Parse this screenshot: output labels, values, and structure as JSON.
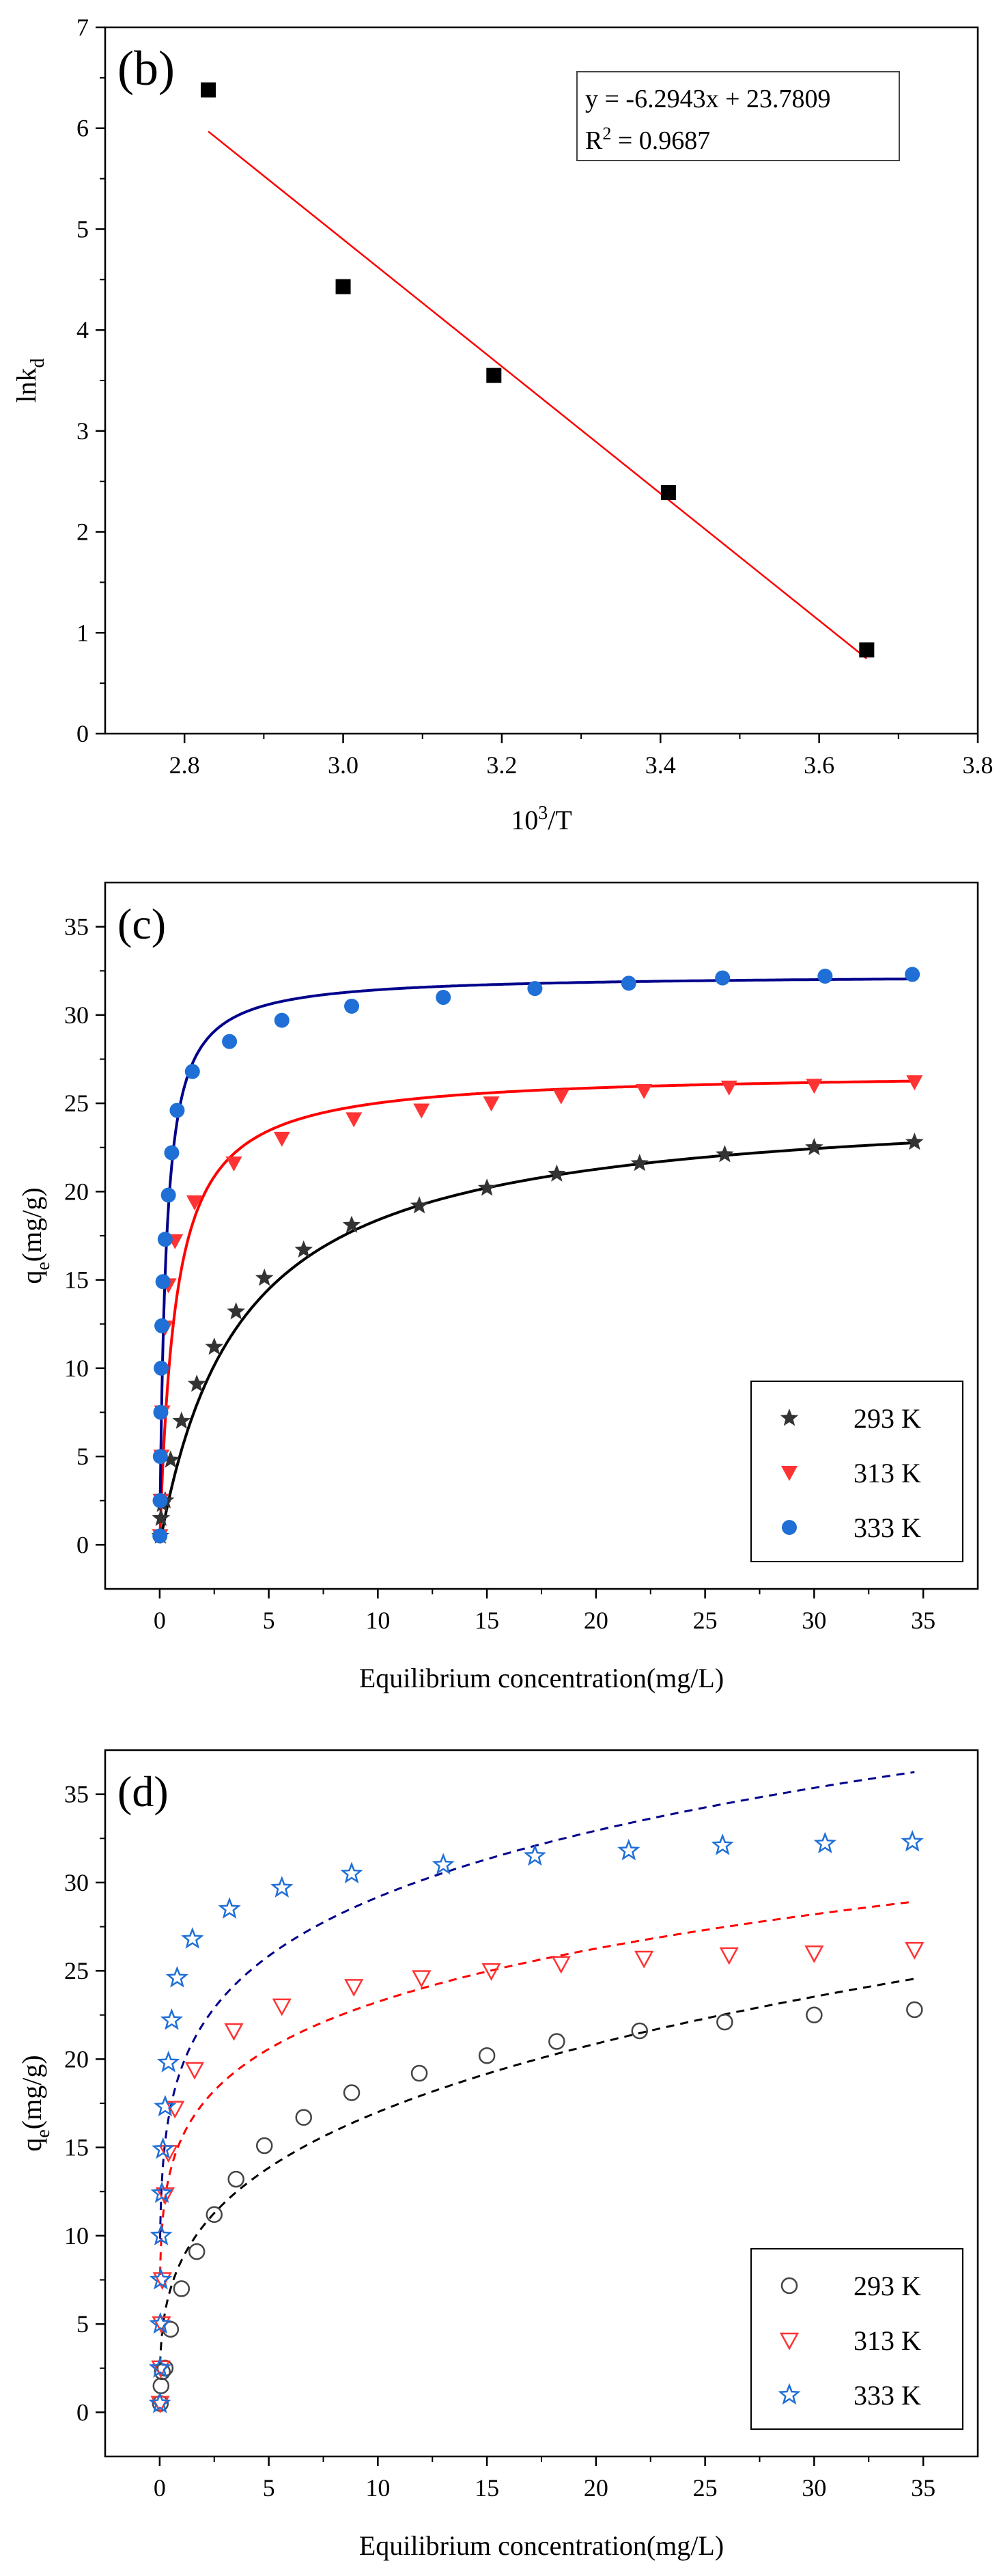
{
  "chart_data": [
    {
      "type": "scatter",
      "panel_label": "(b)",
      "xlabel": "10",
      "xlabel_sup": "3",
      "xlabel_tail": "/T",
      "ylabel": "lnk",
      "ylabel_sub": "d",
      "xlim": [
        2.7,
        3.8
      ],
      "ylim": [
        0,
        7
      ],
      "x_ticks": [
        2.8,
        3.0,
        3.2,
        3.4,
        3.6,
        3.8
      ],
      "x_tick_labels": [
        "2.8",
        "3.0",
        "3.2",
        "3.4",
        "3.6",
        "3.8"
      ],
      "y_ticks": [
        0,
        1,
        2,
        3,
        4,
        5,
        6,
        7
      ],
      "y_tick_labels": [
        "0",
        "1",
        "2",
        "3",
        "4",
        "5",
        "6",
        "7"
      ],
      "series": [
        {
          "name": "lnkd",
          "marker": "square",
          "color": "#000000",
          "x": [
            2.83,
            3.0,
            3.19,
            3.41,
            3.66
          ],
          "y": [
            6.38,
            4.43,
            3.55,
            2.39,
            0.83
          ]
        }
      ],
      "fit_line": {
        "color": "#ff0000",
        "x_range": [
          2.83,
          3.66
        ],
        "slope": -6.2943,
        "intercept": 23.7809
      },
      "annotation": {
        "equation": "y = -6.2943x + 23.7809",
        "r2_prefix": "R",
        "r2_sup": "2",
        "r2_value": " = 0.9687"
      }
    },
    {
      "type": "scatter",
      "panel_label": "(c)",
      "xlabel": "Equilibrium concentration(mg/L)",
      "ylabel": "q",
      "ylabel_sub": "e",
      "ylabel_tail": "(mg/g)",
      "xlim": [
        -2.5,
        37.5
      ],
      "ylim": [
        -2.5,
        37.5
      ],
      "x_ticks": [
        0,
        5,
        10,
        15,
        20,
        25,
        30,
        35
      ],
      "x_tick_labels": [
        "0",
        "5",
        "10",
        "15",
        "20",
        "25",
        "30",
        "35"
      ],
      "y_ticks": [
        0,
        5,
        10,
        15,
        20,
        25,
        30,
        35
      ],
      "y_tick_labels": [
        "0",
        "5",
        "10",
        "15",
        "20",
        "25",
        "30",
        "35"
      ],
      "legend_position": "bottom-right",
      "series": [
        {
          "name": "293 K",
          "marker": "star",
          "color": "#333333",
          "x": [
            0.03,
            0.06,
            0.12,
            0.25,
            0.5,
            1.0,
            1.7,
            2.5,
            3.5,
            4.8,
            6.6,
            8.8,
            11.9,
            15.0,
            18.2,
            22.0,
            25.9,
            30.0,
            34.6
          ],
          "y": [
            0.5,
            1.5,
            2.3,
            2.5,
            4.8,
            7.0,
            9.1,
            11.2,
            13.2,
            15.1,
            16.7,
            18.1,
            19.2,
            20.2,
            21.0,
            21.6,
            22.1,
            22.5,
            22.8
          ]
        },
        {
          "name": "313 K",
          "marker": "triangle-down",
          "color": "#ff3333",
          "x": [
            0.02,
            0.05,
            0.08,
            0.12,
            0.25,
            0.4,
            0.7,
            1.6,
            3.4,
            5.6,
            8.9,
            12.0,
            15.2,
            18.4,
            22.2,
            26.1,
            30.0,
            34.6
          ],
          "y": [
            0.5,
            2.5,
            5.0,
            7.5,
            12.3,
            14.7,
            17.2,
            19.4,
            21.6,
            23.0,
            24.1,
            24.6,
            25.0,
            25.4,
            25.7,
            25.9,
            26.0,
            26.2
          ]
        },
        {
          "name": "333 K",
          "marker": "circle",
          "color": "#1f6fd6",
          "x": [
            0.01,
            0.02,
            0.03,
            0.05,
            0.07,
            0.1,
            0.15,
            0.25,
            0.4,
            0.55,
            0.8,
            1.5,
            3.2,
            5.6,
            8.8,
            13.0,
            17.2,
            21.5,
            25.8,
            30.5,
            34.5
          ],
          "y": [
            0.5,
            2.5,
            5.0,
            7.5,
            10.0,
            12.4,
            14.9,
            17.3,
            19.8,
            22.2,
            24.6,
            26.8,
            28.5,
            29.7,
            30.5,
            31.0,
            31.5,
            31.8,
            32.1,
            32.2,
            32.3
          ]
        }
      ],
      "fits": [
        {
          "name": "293 K",
          "model": "langmuir",
          "qm": 25.2,
          "kl": 0.27,
          "color": "#000000",
          "style": "solid"
        },
        {
          "name": "313 K",
          "model": "langmuir",
          "qm": 26.8,
          "kl": 1.4,
          "color": "#ff0000",
          "style": "solid"
        },
        {
          "name": "333 K",
          "model": "langmuir",
          "qm": 32.3,
          "kl": 3.6,
          "color": "#00008b",
          "style": "solid"
        }
      ]
    },
    {
      "type": "scatter",
      "panel_label": "(d)",
      "xlabel": "Equilibrium concentration(mg/L)",
      "ylabel": "q",
      "ylabel_sub": "e",
      "ylabel_tail": "(mg/g)",
      "xlim": [
        -2.5,
        37.5
      ],
      "ylim": [
        -2.5,
        37.5
      ],
      "x_ticks": [
        0,
        5,
        10,
        15,
        20,
        25,
        30,
        35
      ],
      "x_tick_labels": [
        "0",
        "5",
        "10",
        "15",
        "20",
        "25",
        "30",
        "35"
      ],
      "y_ticks": [
        0,
        5,
        10,
        15,
        20,
        25,
        30,
        35
      ],
      "y_tick_labels": [
        "0",
        "5",
        "10",
        "15",
        "20",
        "25",
        "30",
        "35"
      ],
      "legend_position": "bottom-right",
      "series": [
        {
          "name": "293 K",
          "marker": "open-circle",
          "color": "#444444",
          "x": [
            0.03,
            0.06,
            0.12,
            0.25,
            0.5,
            1.0,
            1.7,
            2.5,
            3.5,
            4.8,
            6.6,
            8.8,
            11.9,
            15.0,
            18.2,
            22.0,
            25.9,
            30.0,
            34.6
          ],
          "y": [
            0.5,
            1.5,
            2.3,
            2.5,
            4.7,
            7.0,
            9.1,
            11.2,
            13.2,
            15.1,
            16.7,
            18.1,
            19.2,
            20.2,
            21.0,
            21.6,
            22.1,
            22.5,
            22.8
          ]
        },
        {
          "name": "313 K",
          "marker": "open-triangle-down",
          "color": "#ff3333",
          "x": [
            0.02,
            0.05,
            0.08,
            0.12,
            0.25,
            0.4,
            0.7,
            1.6,
            3.4,
            5.6,
            8.9,
            12.0,
            15.2,
            18.4,
            22.2,
            26.1,
            30.0,
            34.6
          ],
          "y": [
            0.5,
            2.5,
            5.0,
            7.5,
            12.3,
            14.7,
            17.2,
            19.4,
            21.6,
            23.0,
            24.1,
            24.6,
            25.0,
            25.4,
            25.7,
            25.9,
            26.0,
            26.2
          ]
        },
        {
          "name": "333 K",
          "marker": "open-star",
          "color": "#1f6fd6",
          "x": [
            0.01,
            0.02,
            0.03,
            0.05,
            0.07,
            0.1,
            0.15,
            0.25,
            0.4,
            0.55,
            0.8,
            1.5,
            3.2,
            5.6,
            8.8,
            13.0,
            17.2,
            21.5,
            25.8,
            30.5,
            34.5
          ],
          "y": [
            0.5,
            2.5,
            5.0,
            7.5,
            10.0,
            12.4,
            14.9,
            17.3,
            19.8,
            22.2,
            24.6,
            26.8,
            28.5,
            29.7,
            30.5,
            31.0,
            31.5,
            31.8,
            32.1,
            32.2,
            32.3
          ]
        }
      ],
      "fits": [
        {
          "name": "293 K",
          "model": "freundlich",
          "kf": 8.6,
          "n_inv": 0.296,
          "color": "#000000",
          "style": "dashed"
        },
        {
          "name": "313 K",
          "model": "freundlich",
          "kf": 15.5,
          "n_inv": 0.176,
          "color": "#ff0000",
          "style": "dashed"
        },
        {
          "name": "333 K",
          "model": "freundlich",
          "kf": 19.5,
          "n_inv": 0.175,
          "color": "#00008b",
          "style": "dashed"
        }
      ]
    }
  ]
}
